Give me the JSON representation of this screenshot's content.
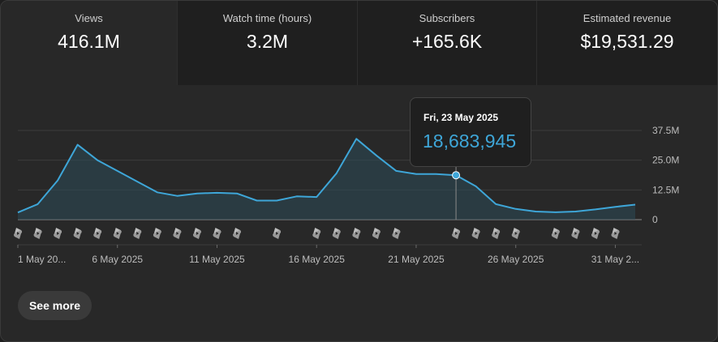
{
  "metrics": [
    {
      "label": "Views",
      "value": "416.1M",
      "selected": true
    },
    {
      "label": "Watch time (hours)",
      "value": "3.2M",
      "selected": false
    },
    {
      "label": "Subscribers",
      "value": "+165.6K",
      "selected": false
    },
    {
      "label": "Estimated revenue",
      "value": "$19,531.29",
      "selected": false
    }
  ],
  "tooltip": {
    "date": "Fri, 23 May 2025",
    "value": "18,683,945"
  },
  "see_more_label": "See more",
  "colors": {
    "line": "#3ea6d8",
    "metric_value": "#ffffff",
    "tooltip_value": "#3ea6d8"
  },
  "chart_data": {
    "type": "area",
    "x": [
      "2025-05-01",
      "2025-05-02",
      "2025-05-03",
      "2025-05-04",
      "2025-05-05",
      "2025-05-06",
      "2025-05-07",
      "2025-05-08",
      "2025-05-09",
      "2025-05-10",
      "2025-05-11",
      "2025-05-12",
      "2025-05-13",
      "2025-05-14",
      "2025-05-15",
      "2025-05-16",
      "2025-05-17",
      "2025-05-18",
      "2025-05-19",
      "2025-05-20",
      "2025-05-21",
      "2025-05-22",
      "2025-05-23",
      "2025-05-24",
      "2025-05-25",
      "2025-05-26",
      "2025-05-27",
      "2025-05-28",
      "2025-05-29",
      "2025-05-30",
      "2025-05-31",
      "2025-06-01"
    ],
    "y": [
      3.0,
      6.5,
      16.5,
      31.5,
      25.0,
      20.5,
      16.0,
      11.5,
      10.0,
      11.0,
      11.3,
      11.0,
      8.0,
      8.0,
      9.8,
      9.5,
      19.5,
      34.0,
      27.0,
      20.5,
      19.2,
      19.2,
      18.683945,
      14.0,
      6.5,
      4.5,
      3.4,
      3.1,
      3.4,
      4.3,
      5.4,
      6.3
    ],
    "ylim": [
      0,
      37.5
    ],
    "y_ticks": [
      {
        "value": 37.5,
        "label": "37.5M"
      },
      {
        "value": 25.0,
        "label": "25.0M"
      },
      {
        "value": 12.5,
        "label": "12.5M"
      },
      {
        "value": 0,
        "label": "0"
      }
    ],
    "x_tick_labels": [
      {
        "index": 0,
        "label": "1 May 20..."
      },
      {
        "index": 5,
        "label": "6 May 2025"
      },
      {
        "index": 10,
        "label": "11 May 2025"
      },
      {
        "index": 15,
        "label": "16 May 2025"
      },
      {
        "index": 20,
        "label": "21 May 2025"
      },
      {
        "index": 25,
        "label": "26 May 2025"
      },
      {
        "index": 30,
        "label": "31 May 2..."
      }
    ],
    "upload_marker_days": [
      0,
      1,
      2,
      3,
      4,
      5,
      6,
      7,
      8,
      9,
      10,
      11,
      13,
      15,
      16,
      17,
      18,
      19,
      22,
      23,
      24,
      25,
      27,
      28,
      29,
      30
    ],
    "hover_index": 22,
    "grid": true
  }
}
